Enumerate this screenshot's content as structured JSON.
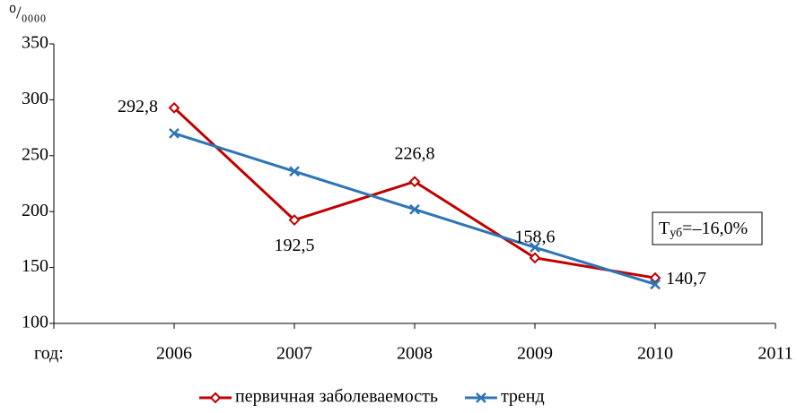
{
  "chart_data": {
    "type": "line",
    "ylabel": "⁰/₀₀₀₀",
    "xlabel": "год:",
    "categories": [
      "2006",
      "2007",
      "2008",
      "2009",
      "2010",
      "2011"
    ],
    "series": [
      {
        "name": "первичная заболеваемость",
        "color": "#c00000",
        "marker": "diamond",
        "values": [
          292.8,
          192.5,
          226.8,
          158.6,
          140.7,
          null
        ],
        "value_labels": [
          "292,8",
          "192,5",
          "226,8",
          "158,6",
          "140,7",
          null
        ]
      },
      {
        "name": "тренд",
        "color": "#2e75b6",
        "marker": "x",
        "values": [
          270,
          236,
          202,
          168,
          135,
          null
        ]
      }
    ],
    "ylim": [
      100,
      350
    ],
    "yticks": [
      100,
      150,
      200,
      250,
      300,
      350
    ],
    "grid": false,
    "legend": "bottom",
    "annotation": [
      "Т",
      "уб",
      "=–16,0%"
    ]
  }
}
